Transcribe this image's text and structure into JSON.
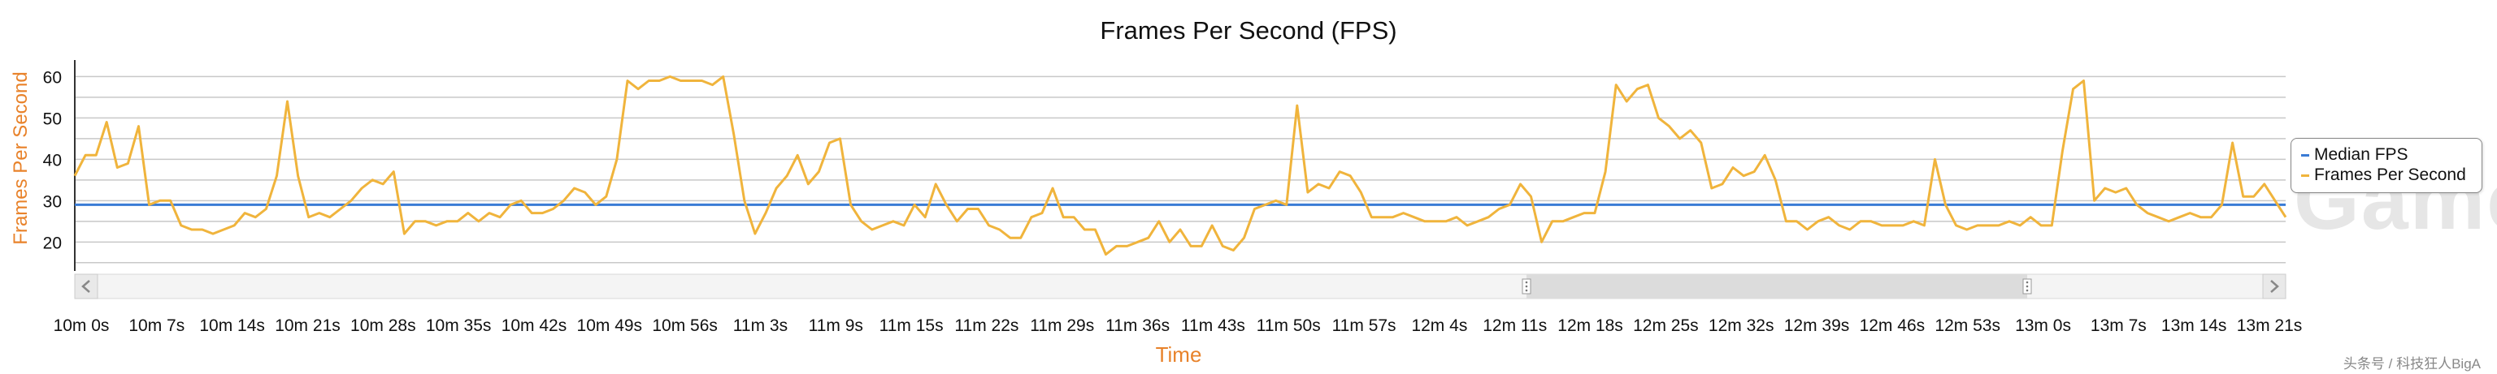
{
  "chart_data": {
    "type": "line",
    "title": "Frames Per Second (FPS)",
    "xlabel": "Time",
    "ylabel": "Frames Per Second",
    "ylim": [
      13,
      64
    ],
    "yticks": [
      20,
      30,
      40,
      50,
      60
    ],
    "grid": true,
    "legend_position": "right",
    "x_tick_labels": [
      "10m 0s",
      "10m 7s",
      "10m 14s",
      "10m 21s",
      "10m 28s",
      "10m 35s",
      "10m 42s",
      "10m 49s",
      "10m 56s",
      "11m 3s",
      "11m 9s",
      "11m 15s",
      "11m 22s",
      "11m 29s",
      "11m 36s",
      "11m 43s",
      "11m 50s",
      "11m 57s",
      "12m 4s",
      "12m 11s",
      "12m 18s",
      "12m 25s",
      "12m 32s",
      "12m 39s",
      "12m 46s",
      "12m 53s",
      "13m 0s",
      "13m 7s",
      "13m 14s",
      "13m 21s"
    ],
    "series": [
      {
        "name": "Median FPS",
        "color": "#3a7bd5",
        "constant": 29
      },
      {
        "name": "Frames Per Second",
        "color": "#f0b43c",
        "values": [
          36,
          41,
          41,
          49,
          38,
          39,
          48,
          29,
          30,
          30,
          24,
          23,
          23,
          22,
          23,
          24,
          27,
          26,
          28,
          36,
          54,
          36,
          26,
          27,
          26,
          28,
          30,
          33,
          35,
          34,
          37,
          22,
          25,
          25,
          24,
          25,
          25,
          27,
          25,
          27,
          26,
          29,
          30,
          27,
          27,
          28,
          30,
          33,
          32,
          29,
          31,
          40,
          59,
          57,
          59,
          59,
          60,
          59,
          59,
          59,
          58,
          60,
          46,
          30,
          22,
          27,
          33,
          36,
          41,
          34,
          37,
          44,
          45,
          29,
          25,
          23,
          24,
          25,
          24,
          29,
          26,
          34,
          29,
          25,
          28,
          28,
          24,
          23,
          21,
          21,
          26,
          27,
          33,
          26,
          26,
          23,
          23,
          17,
          19,
          19,
          20,
          21,
          25,
          20,
          23,
          19,
          19,
          24,
          19,
          18,
          21,
          28,
          29,
          30,
          29,
          53,
          32,
          34,
          33,
          37,
          36,
          32,
          26,
          26,
          26,
          27,
          26,
          25,
          25,
          25,
          26,
          24,
          25,
          26,
          28,
          29,
          34,
          31,
          20,
          25,
          25,
          26,
          27,
          27,
          37,
          58,
          54,
          57,
          58,
          50,
          48,
          45,
          47,
          44,
          33,
          34,
          38,
          36,
          37,
          41,
          35,
          25,
          25,
          23,
          25,
          26,
          24,
          23,
          25,
          25,
          24,
          24,
          24,
          25,
          24,
          40,
          29,
          24,
          23,
          24,
          24,
          24,
          25,
          24,
          26,
          24,
          24,
          42,
          57,
          59,
          30,
          33,
          32,
          33,
          29,
          27,
          26,
          25,
          26,
          27,
          26,
          26,
          29,
          44,
          31,
          31,
          34,
          30,
          26
        ]
      }
    ]
  },
  "legend": {
    "items": [
      {
        "label": "Median FPS",
        "color": "#3a7bd5"
      },
      {
        "label": "Frames Per Second",
        "color": "#f0b43c"
      }
    ]
  },
  "navigator": {
    "left_arrow_icon": "chevron-left-icon",
    "right_arrow_icon": "chevron-right-icon",
    "handle_icon": "grip-icon"
  },
  "watermark": "Game",
  "credit": "头条号 / 科技狂人BigA"
}
